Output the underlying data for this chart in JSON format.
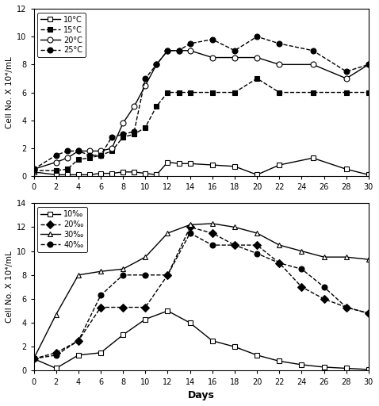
{
  "top": {
    "title": "",
    "ylabel": "Cell No. X 10⁴/mL",
    "ylim": [
      0,
      12
    ],
    "yticks": [
      0,
      2,
      4,
      6,
      8,
      10,
      12
    ],
    "xlim": [
      0,
      30
    ],
    "xticks": [
      0,
      2,
      4,
      6,
      8,
      10,
      12,
      14,
      16,
      18,
      20,
      22,
      24,
      26,
      28,
      30
    ],
    "series": [
      {
        "label": "10°C",
        "linestyle": "-",
        "marker": "s",
        "fillstyle": "none",
        "x": [
          0,
          2,
          3,
          4,
          5,
          6,
          7,
          8,
          9,
          10,
          11,
          12,
          13,
          14,
          16,
          18,
          20,
          22,
          25,
          28,
          30
        ],
        "y": [
          0.3,
          0.1,
          0.1,
          0.1,
          0.1,
          0.2,
          0.2,
          0.3,
          0.3,
          0.2,
          0.1,
          1.0,
          0.9,
          0.9,
          0.8,
          0.7,
          0.1,
          0.8,
          1.3,
          0.5,
          0.1
        ]
      },
      {
        "label": "15°C",
        "linestyle": "--",
        "marker": "s",
        "fillstyle": "full",
        "x": [
          0,
          2,
          3,
          4,
          5,
          6,
          7,
          8,
          9,
          10,
          11,
          12,
          13,
          14,
          16,
          18,
          20,
          22,
          25,
          28,
          30
        ],
        "y": [
          0.4,
          0.4,
          0.5,
          1.2,
          1.3,
          1.5,
          1.8,
          2.8,
          3.0,
          3.5,
          5.0,
          6.0,
          6.0,
          6.0,
          6.0,
          6.0,
          7.0,
          6.0,
          6.0,
          6.0,
          6.0
        ]
      },
      {
        "label": "20°C",
        "linestyle": "-",
        "marker": "o",
        "fillstyle": "none",
        "x": [
          0,
          2,
          3,
          4,
          5,
          6,
          7,
          8,
          9,
          10,
          11,
          12,
          13,
          14,
          16,
          18,
          20,
          22,
          25,
          28,
          30
        ],
        "y": [
          0.5,
          1.0,
          1.3,
          1.8,
          1.8,
          1.8,
          2.0,
          3.8,
          5.0,
          6.5,
          8.0,
          9.0,
          9.0,
          9.0,
          8.5,
          8.5,
          8.5,
          8.0,
          8.0,
          7.0,
          8.0
        ]
      },
      {
        "label": "25°C",
        "linestyle": "--",
        "marker": "o",
        "fillstyle": "full",
        "x": [
          0,
          2,
          3,
          4,
          5,
          6,
          7,
          8,
          9,
          10,
          11,
          12,
          13,
          14,
          16,
          18,
          20,
          22,
          25,
          28,
          30
        ],
        "y": [
          0.5,
          1.5,
          1.8,
          1.8,
          1.5,
          1.5,
          2.8,
          3.0,
          3.2,
          7.0,
          8.0,
          9.0,
          9.0,
          9.5,
          9.8,
          9.0,
          10.0,
          9.5,
          9.0,
          7.5,
          8.0
        ]
      }
    ]
  },
  "bottom": {
    "title": "",
    "ylabel": "Cell No. X 10⁴/mL",
    "xlabel": "Days",
    "ylim": [
      0,
      14
    ],
    "yticks": [
      0,
      2,
      4,
      6,
      8,
      10,
      12,
      14
    ],
    "xlim": [
      0,
      30
    ],
    "xticks": [
      0,
      2,
      4,
      6,
      8,
      10,
      12,
      14,
      16,
      18,
      20,
      22,
      24,
      26,
      28,
      30
    ],
    "series": [
      {
        "label": "10‰",
        "linestyle": "-",
        "marker": "s",
        "fillstyle": "none",
        "x": [
          0,
          2,
          4,
          6,
          8,
          10,
          12,
          14,
          16,
          18,
          20,
          22,
          24,
          26,
          28,
          30
        ],
        "y": [
          1.0,
          0.2,
          1.3,
          1.5,
          3.0,
          4.3,
          5.0,
          4.0,
          2.5,
          2.0,
          1.3,
          0.8,
          0.5,
          0.3,
          0.2,
          0.1
        ]
      },
      {
        "label": "20‰",
        "linestyle": "--",
        "marker": "D",
        "fillstyle": "full",
        "x": [
          0,
          2,
          4,
          6,
          8,
          10,
          12,
          14,
          16,
          18,
          20,
          22,
          24,
          26,
          28,
          30
        ],
        "y": [
          1.0,
          1.5,
          2.5,
          5.3,
          5.3,
          5.3,
          8.0,
          12.0,
          11.5,
          10.5,
          10.5,
          9.0,
          7.0,
          6.0,
          5.3,
          4.8
        ]
      },
      {
        "label": "30‰",
        "linestyle": "-",
        "marker": "^",
        "fillstyle": "none",
        "x": [
          0,
          2,
          4,
          6,
          8,
          10,
          12,
          14,
          16,
          18,
          20,
          22,
          24,
          26,
          28,
          30
        ],
        "y": [
          1.0,
          4.7,
          8.0,
          8.3,
          8.5,
          9.5,
          11.5,
          12.2,
          12.3,
          12.0,
          11.5,
          10.5,
          10.0,
          9.5,
          9.5,
          9.3
        ]
      },
      {
        "label": "40‰",
        "linestyle": "--",
        "marker": "o",
        "fillstyle": "full",
        "x": [
          0,
          2,
          4,
          6,
          8,
          10,
          12,
          14,
          16,
          18,
          20,
          22,
          24,
          26,
          28,
          30
        ],
        "y": [
          1.0,
          1.3,
          2.5,
          6.3,
          8.0,
          8.0,
          8.0,
          11.5,
          10.5,
          10.5,
          9.8,
          9.0,
          8.5,
          7.0,
          5.3,
          4.8
        ]
      }
    ]
  }
}
